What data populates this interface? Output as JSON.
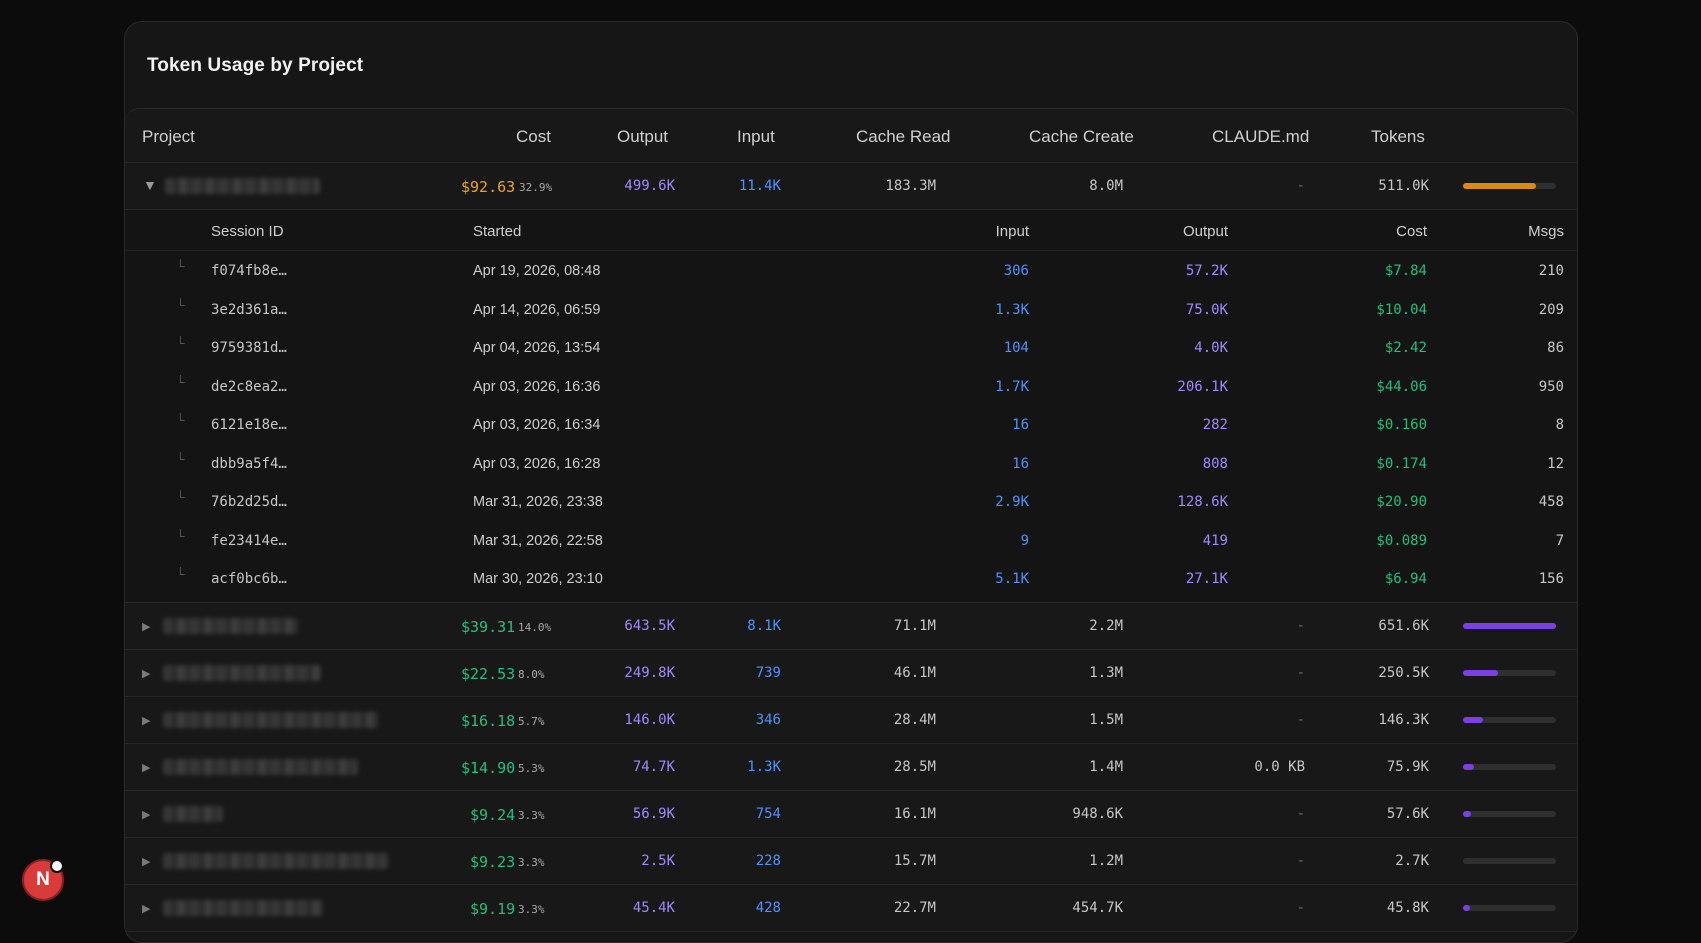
{
  "panel": {
    "title": "Token Usage by Project"
  },
  "columns": [
    "Project",
    "Cost",
    "Output",
    "Input",
    "Cache Read",
    "Cache Create",
    "CLAUDE.md",
    "Tokens"
  ],
  "session_columns": [
    "Session ID",
    "Started",
    "Input",
    "Output",
    "Cost",
    "Msgs"
  ],
  "expanded_project": {
    "cost": "$92.63",
    "pct": "32.9%",
    "output": "499.6K",
    "input": "11.4K",
    "cache_read": "183.3M",
    "cache_create": "8.0M",
    "claude_md": "-",
    "tokens": "511.0K",
    "bar_fraction": 0.78,
    "bar_color": "#d98a12",
    "sessions": [
      {
        "id": "f074fb8e…",
        "started": "Apr 19, 2026, 08:48",
        "input": "306",
        "output": "57.2K",
        "cost": "$7.84",
        "msgs": "210"
      },
      {
        "id": "3e2d361a…",
        "started": "Apr 14, 2026, 06:59",
        "input": "1.3K",
        "output": "75.0K",
        "cost": "$10.04",
        "msgs": "209"
      },
      {
        "id": "9759381d…",
        "started": "Apr 04, 2026, 13:54",
        "input": "104",
        "output": "4.0K",
        "cost": "$2.42",
        "msgs": "86"
      },
      {
        "id": "de2c8ea2…",
        "started": "Apr 03, 2026, 16:36",
        "input": "1.7K",
        "output": "206.1K",
        "cost": "$44.06",
        "msgs": "950"
      },
      {
        "id": "6121e18e…",
        "started": "Apr 03, 2026, 16:34",
        "input": "16",
        "output": "282",
        "cost": "$0.160",
        "msgs": "8"
      },
      {
        "id": "dbb9a5f4…",
        "started": "Apr 03, 2026, 16:28",
        "input": "16",
        "output": "808",
        "cost": "$0.174",
        "msgs": "12"
      },
      {
        "id": "76b2d25d…",
        "started": "Mar 31, 2026, 23:38",
        "input": "2.9K",
        "output": "128.6K",
        "cost": "$20.90",
        "msgs": "458"
      },
      {
        "id": "fe23414e…",
        "started": "Mar 31, 2026, 22:58",
        "input": "9",
        "output": "419",
        "cost": "$0.089",
        "msgs": "7"
      },
      {
        "id": "acf0bc6b…",
        "started": "Mar 30, 2026, 23:10",
        "input": "5.1K",
        "output": "27.1K",
        "cost": "$6.94",
        "msgs": "156"
      }
    ]
  },
  "projects": [
    {
      "cost": "$39.31",
      "pct": "14.0%",
      "output": "643.5K",
      "input": "8.1K",
      "cache_read": "71.1M",
      "cache_create": "2.2M",
      "claude_md": "-",
      "tokens": "651.6K",
      "bar_fraction": 1.0
    },
    {
      "cost": "$22.53",
      "pct": "8.0%",
      "output": "249.8K",
      "input": "739",
      "cache_read": "46.1M",
      "cache_create": "1.3M",
      "claude_md": "-",
      "tokens": "250.5K",
      "bar_fraction": 0.38
    },
    {
      "cost": "$16.18",
      "pct": "5.7%",
      "output": "146.0K",
      "input": "346",
      "cache_read": "28.4M",
      "cache_create": "1.5M",
      "claude_md": "-",
      "tokens": "146.3K",
      "bar_fraction": 0.22
    },
    {
      "cost": "$14.90",
      "pct": "5.3%",
      "output": "74.7K",
      "input": "1.3K",
      "cache_read": "28.5M",
      "cache_create": "1.4M",
      "claude_md": "0.0 KB",
      "tokens": "75.9K",
      "bar_fraction": 0.12
    },
    {
      "cost": "$9.24",
      "pct": "3.3%",
      "output": "56.9K",
      "input": "754",
      "cache_read": "16.1M",
      "cache_create": "948.6K",
      "claude_md": "-",
      "tokens": "57.6K",
      "bar_fraction": 0.09
    },
    {
      "cost": "$9.23",
      "pct": "3.3%",
      "output": "2.5K",
      "input": "228",
      "cache_read": "15.7M",
      "cache_create": "1.2M",
      "claude_md": "-",
      "tokens": "2.7K",
      "bar_fraction": 0.0
    },
    {
      "cost": "$9.19",
      "pct": "3.3%",
      "output": "45.4K",
      "input": "428",
      "cache_read": "22.7M",
      "cache_create": "454.7K",
      "claude_md": "-",
      "tokens": "45.8K",
      "bar_fraction": 0.07
    }
  ],
  "project_bar_color": "#7b3fe4",
  "fab": {
    "label": "N"
  }
}
